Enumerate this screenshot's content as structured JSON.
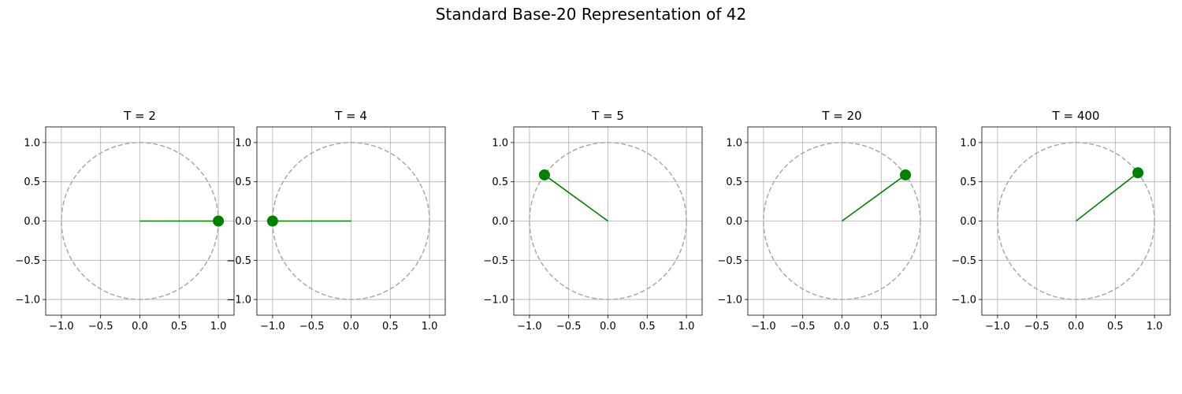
{
  "figure": {
    "title": "Standard Base-20 Representation of 42"
  },
  "chart_data": [
    {
      "type": "line",
      "title": "T = 2",
      "xlim": [
        -1.2,
        1.2
      ],
      "ylim": [
        -1.2,
        1.2
      ],
      "xticks": [
        "-1.0",
        "-0.5",
        "0.0",
        "0.5",
        "1.0"
      ],
      "yticks": [
        "-1.0",
        "-0.5",
        "0.0",
        "0.5",
        "1.0"
      ],
      "grid": true,
      "unit_circle": true,
      "vector_end": [
        1.0,
        0.0
      ],
      "color": "#008000"
    },
    {
      "type": "line",
      "title": "T = 4",
      "xlim": [
        -1.2,
        1.2
      ],
      "ylim": [
        -1.2,
        1.2
      ],
      "xticks": [
        "-1.0",
        "-0.5",
        "0.0",
        "0.5",
        "1.0"
      ],
      "yticks": [
        "-1.0",
        "-0.5",
        "0.0",
        "0.5",
        "1.0"
      ],
      "grid": true,
      "unit_circle": true,
      "vector_end": [
        -1.0,
        0.0
      ],
      "color": "#008000"
    },
    {
      "type": "line",
      "title": "T = 5",
      "xlim": [
        -1.2,
        1.2
      ],
      "ylim": [
        -1.2,
        1.2
      ],
      "xticks": [
        "-1.0",
        "-0.5",
        "0.0",
        "0.5",
        "1.0"
      ],
      "yticks": [
        "-1.0",
        "-0.5",
        "0.0",
        "0.5",
        "1.0"
      ],
      "grid": true,
      "unit_circle": true,
      "vector_end": [
        -0.809,
        0.588
      ],
      "color": "#008000"
    },
    {
      "type": "line",
      "title": "T = 20",
      "xlim": [
        -1.2,
        1.2
      ],
      "ylim": [
        -1.2,
        1.2
      ],
      "xticks": [
        "-1.0",
        "-0.5",
        "0.0",
        "0.5",
        "1.0"
      ],
      "yticks": [
        "-1.0",
        "-0.5",
        "0.0",
        "0.5",
        "1.0"
      ],
      "grid": true,
      "unit_circle": true,
      "vector_end": [
        0.809,
        0.588
      ],
      "color": "#008000"
    },
    {
      "type": "line",
      "title": "T = 400",
      "xlim": [
        -1.2,
        1.2
      ],
      "ylim": [
        -1.2,
        1.2
      ],
      "xticks": [
        "-1.0",
        "-0.5",
        "0.0",
        "0.5",
        "1.0"
      ],
      "yticks": [
        "-1.0",
        "-0.5",
        "0.0",
        "0.5",
        "1.0"
      ],
      "grid": true,
      "unit_circle": true,
      "vector_end": [
        0.789,
        0.615
      ],
      "color": "#008000"
    }
  ]
}
